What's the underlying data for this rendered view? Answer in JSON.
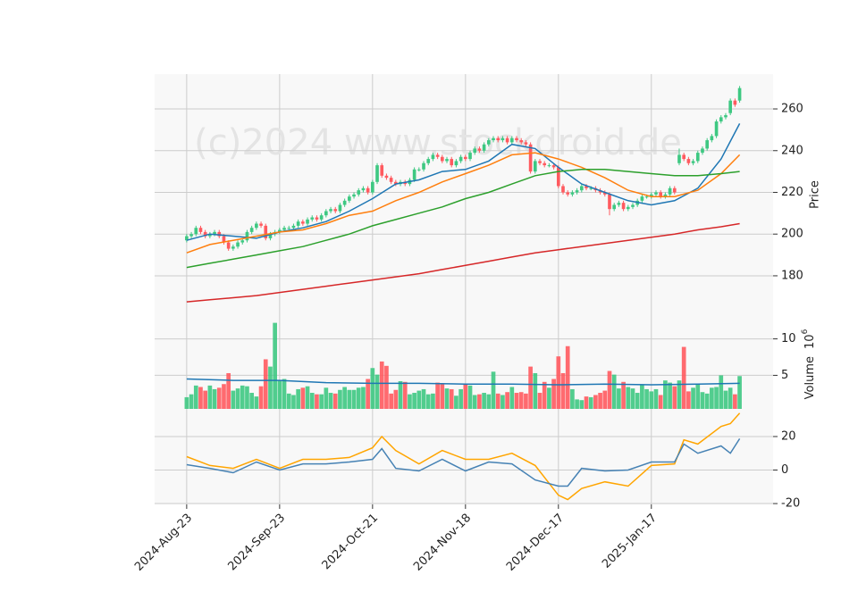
{
  "chart_data": [
    {
      "type": "candlestick",
      "watermark": "(c)2024 www.stockdroid.de",
      "ylabel": "Price",
      "up_color": "#3ec882",
      "down_color": "#ff5a5f",
      "xlim": [
        -6.9,
        126.2
      ],
      "xticks": [
        {
          "value": 0,
          "label": "2024-Aug-23"
        },
        {
          "value": 20,
          "label": "2024-Sep-23"
        },
        {
          "value": 40,
          "label": "2024-Oct-21"
        },
        {
          "value": 60,
          "label": "2024-Nov-18"
        },
        {
          "value": 80,
          "label": "2024-Dec-17"
        },
        {
          "value": 100,
          "label": "2025-Jan-17"
        }
      ],
      "ylim": [
        162,
        276.7
      ],
      "yticks": [
        180,
        200,
        220,
        240,
        260
      ],
      "grid": true,
      "open": [
        197,
        199,
        200,
        203,
        201,
        199,
        200,
        201,
        199,
        196,
        193,
        194,
        196,
        197,
        201,
        203,
        205,
        204,
        198,
        200,
        201,
        202,
        203,
        203,
        204,
        206,
        205,
        207,
        208,
        207,
        209,
        211,
        212,
        211,
        214,
        216,
        218,
        219,
        221,
        222,
        220,
        225,
        233,
        228,
        227,
        225,
        224,
        225,
        224,
        226,
        231,
        231,
        234,
        236,
        238,
        237,
        235,
        236,
        233,
        235,
        237,
        236,
        239,
        241,
        240,
        243,
        245,
        246,
        245,
        246,
        244,
        246,
        245,
        244,
        243,
        230,
        235,
        234,
        233,
        233,
        232,
        223,
        220,
        219,
        220,
        221,
        223,
        222,
        222,
        221,
        220,
        219,
        212,
        214,
        215,
        212,
        213,
        214,
        216,
        218,
        218,
        219,
        220,
        218,
        219,
        222,
        234,
        238,
        236,
        234,
        235,
        239,
        241,
        245,
        247,
        254,
        256,
        258,
        264,
        264
      ],
      "high": [
        200,
        201,
        204,
        204,
        202,
        201,
        202,
        202,
        200,
        197,
        195,
        197,
        198,
        202,
        204,
        206,
        206,
        205,
        201,
        202,
        203,
        204,
        204,
        205,
        207,
        207,
        208,
        209,
        209,
        210,
        212,
        213,
        213,
        215,
        217,
        219,
        220,
        222,
        223,
        223,
        226,
        234,
        234,
        229,
        228,
        226,
        226,
        226,
        227,
        232,
        232,
        235,
        237,
        239,
        239,
        238,
        237,
        237,
        236,
        238,
        238,
        240,
        242,
        242,
        244,
        246,
        247,
        247,
        247,
        247,
        247,
        247,
        246,
        245,
        244,
        236,
        236,
        235,
        234,
        234,
        233,
        224,
        221,
        221,
        222,
        224,
        224,
        223,
        223,
        222,
        221,
        220,
        215,
        216,
        216,
        214,
        215,
        217,
        219,
        219,
        220,
        221,
        221,
        220,
        223,
        223,
        241,
        239,
        237,
        236,
        240,
        242,
        246,
        248,
        255,
        257,
        258,
        265,
        265,
        271
      ],
      "low": [
        196,
        198,
        199,
        200,
        198,
        198,
        199,
        198,
        195,
        192,
        192,
        193,
        195,
        196,
        200,
        202,
        203,
        197,
        197,
        199,
        200,
        201,
        202,
        202,
        203,
        204,
        204,
        206,
        206,
        206,
        208,
        210,
        210,
        210,
        213,
        215,
        217,
        218,
        220,
        219,
        219,
        224,
        227,
        226,
        224,
        223,
        223,
        223,
        223,
        225,
        230,
        230,
        233,
        235,
        236,
        234,
        234,
        232,
        232,
        234,
        235,
        235,
        238,
        239,
        239,
        242,
        244,
        244,
        244,
        243,
        243,
        244,
        243,
        242,
        229,
        229,
        233,
        232,
        232,
        231,
        222,
        219,
        218,
        218,
        219,
        220,
        221,
        221,
        220,
        219,
        218,
        209,
        211,
        213,
        211,
        211,
        212,
        213,
        215,
        217,
        217,
        218,
        217,
        217,
        218,
        219,
        233,
        235,
        233,
        233,
        234,
        238,
        240,
        244,
        246,
        253,
        255,
        257,
        261,
        263
      ],
      "close": [
        199,
        200,
        203,
        201,
        199,
        200,
        201,
        199,
        196,
        193,
        194,
        196,
        197,
        201,
        203,
        205,
        204,
        198,
        200,
        201,
        202,
        203,
        203,
        204,
        206,
        205,
        207,
        208,
        207,
        209,
        211,
        212,
        211,
        214,
        216,
        218,
        219,
        221,
        222,
        220,
        225,
        233,
        228,
        227,
        225,
        224,
        225,
        224,
        226,
        231,
        231,
        234,
        236,
        238,
        237,
        235,
        236,
        233,
        235,
        237,
        236,
        239,
        241,
        240,
        243,
        245,
        246,
        245,
        246,
        244,
        246,
        245,
        244,
        243,
        230,
        235,
        234,
        233,
        233,
        232,
        223,
        220,
        219,
        220,
        221,
        223,
        222,
        222,
        221,
        220,
        219,
        212,
        214,
        215,
        212,
        213,
        214,
        216,
        218,
        218,
        219,
        220,
        218,
        219,
        222,
        220,
        238,
        236,
        234,
        235,
        239,
        241,
        245,
        247,
        254,
        256,
        257,
        264,
        262,
        270
      ],
      "series": [
        {
          "color": "#1f77b4",
          "x": [
            0,
            5,
            10,
            15,
            20,
            25,
            30,
            35,
            40,
            45,
            50,
            55,
            60,
            65,
            70,
            75,
            80,
            85,
            90,
            95,
            100,
            105,
            110,
            115,
            119
          ],
          "values": [
            197,
            200,
            199,
            198,
            201,
            203,
            206,
            211,
            217,
            224,
            226,
            230,
            231,
            235,
            243,
            241,
            232,
            224,
            220,
            216,
            214,
            216,
            222,
            236,
            253
          ]
        },
        {
          "color": "#ff7f0e",
          "x": [
            0,
            5,
            10,
            15,
            20,
            25,
            30,
            35,
            40,
            45,
            50,
            55,
            60,
            65,
            70,
            75,
            80,
            85,
            90,
            95,
            100,
            105,
            110,
            115,
            119
          ],
          "values": [
            191,
            195,
            197,
            199,
            201,
            202,
            205,
            209,
            211,
            216,
            220,
            225,
            229,
            233,
            238,
            239,
            236,
            232,
            227,
            221,
            218,
            218,
            221,
            229,
            238
          ]
        },
        {
          "color": "#2ca02c",
          "x": [
            0,
            5,
            10,
            15,
            20,
            25,
            30,
            35,
            40,
            45,
            50,
            55,
            60,
            65,
            70,
            75,
            80,
            85,
            90,
            95,
            100,
            105,
            110,
            115,
            119
          ],
          "values": [
            184,
            186,
            188,
            190,
            192,
            194,
            197,
            200,
            204,
            207,
            210,
            213,
            217,
            220,
            224,
            228,
            230,
            231,
            231,
            230,
            229,
            228,
            228,
            229,
            230
          ]
        },
        {
          "color": "#d62728",
          "x": [
            0,
            5,
            10,
            15,
            20,
            25,
            30,
            35,
            40,
            45,
            50,
            55,
            60,
            65,
            70,
            75,
            80,
            85,
            90,
            95,
            100,
            105,
            110,
            115,
            119
          ],
          "values": [
            167.5,
            168.5,
            169.5,
            170.5,
            172,
            173.5,
            175,
            176.5,
            178,
            179.5,
            181,
            183,
            185,
            187,
            189,
            191,
            192.5,
            194,
            195.5,
            197,
            198.5,
            200,
            202,
            203.5,
            205
          ]
        }
      ]
    },
    {
      "type": "bar",
      "ylabel": "Volume",
      "offset_base": "10",
      "offset_exponent": "6",
      "ylim": [
        0.4,
        13.5
      ],
      "yticks": [
        5,
        10
      ],
      "grid": true,
      "values": [
        2.0,
        2.4,
        3.6,
        3.4,
        2.9,
        3.6,
        3.1,
        3.3,
        3.8,
        5.3,
        2.9,
        3.2,
        3.6,
        3.5,
        2.6,
        2.1,
        3.5,
        7.2,
        6.2,
        12.2,
        4.3,
        4.5,
        2.5,
        2.3,
        3.1,
        3.3,
        3.5,
        2.6,
        2.4,
        2.4,
        3.3,
        2.6,
        2.5,
        3.0,
        3.4,
        3.0,
        3.0,
        3.3,
        3.4,
        4.5,
        6.0,
        5.1,
        6.9,
        6.3,
        2.5,
        3.0,
        4.2,
        4.1,
        2.4,
        2.6,
        2.9,
        3.1,
        2.4,
        2.5,
        4.0,
        3.9,
        3.2,
        3.1,
        2.2,
        3.1,
        3.8,
        3.6,
        2.3,
        2.4,
        2.6,
        2.4,
        5.5,
        2.5,
        2.3,
        2.7,
        3.4,
        2.6,
        2.7,
        2.5,
        6.2,
        5.3,
        2.6,
        4.1,
        3.3,
        4.5,
        7.6,
        5.3,
        9.0,
        3.1,
        1.7,
        1.6,
        2.1,
        2.0,
        2.3,
        2.6,
        2.9,
        5.6,
        5.1,
        3.2,
        4.1,
        3.4,
        3.2,
        2.6,
        3.7,
        3.1,
        2.8,
        3.1,
        2.3,
        4.3,
        4.0,
        3.5,
        4.3,
        8.9,
        2.8,
        3.3,
        3.8,
        2.7,
        2.5,
        3.3,
        3.4,
        5.0,
        2.9,
        3.3,
        2.4,
        4.9
      ],
      "series": [
        {
          "color": "#1f77b4",
          "x": [
            0,
            10,
            20,
            30,
            40,
            50,
            60,
            70,
            80,
            90,
            100,
            110,
            119
          ],
          "values": [
            4.5,
            4.3,
            4.3,
            4.0,
            3.9,
            3.9,
            3.8,
            3.8,
            3.7,
            3.8,
            3.7,
            3.8,
            3.9
          ]
        }
      ]
    },
    {
      "type": "line",
      "ylim": [
        -20.5,
        36.5
      ],
      "yticks": [
        -20,
        0,
        20
      ],
      "grid": true,
      "series": [
        {
          "color": "#ffa500",
          "x": [
            0,
            5,
            10,
            15,
            20,
            25,
            30,
            35,
            40,
            42,
            45,
            50,
            55,
            60,
            65,
            70,
            75,
            80,
            82,
            85,
            90,
            95,
            100,
            105,
            107,
            110,
            115,
            117,
            119
          ],
          "values": [
            8,
            2.7,
            1,
            6.4,
            1,
            6.4,
            6.4,
            7.5,
            13.3,
            20,
            11.7,
            3.7,
            11.7,
            6.4,
            6.4,
            10,
            2.7,
            -15,
            -17.6,
            -11,
            -7,
            -9.6,
            2.7,
            3.7,
            18,
            15.5,
            26,
            27.7,
            34
          ]
        },
        {
          "color": "#4682b4",
          "x": [
            0,
            5,
            10,
            15,
            20,
            25,
            30,
            35,
            40,
            42,
            45,
            50,
            55,
            60,
            65,
            70,
            75,
            80,
            82,
            85,
            90,
            95,
            100,
            105,
            107,
            110,
            115,
            117,
            119
          ],
          "values": [
            3.2,
            1,
            -1.6,
            4.8,
            0,
            3.7,
            3.7,
            4.8,
            6.4,
            12.8,
            1,
            -0.5,
            6.4,
            -0.5,
            4.8,
            3.7,
            -5.9,
            -9.6,
            -9.6,
            1,
            -0.5,
            0,
            4.8,
            4.8,
            15.5,
            10,
            14.4,
            10,
            18.7
          ]
        }
      ]
    }
  ]
}
